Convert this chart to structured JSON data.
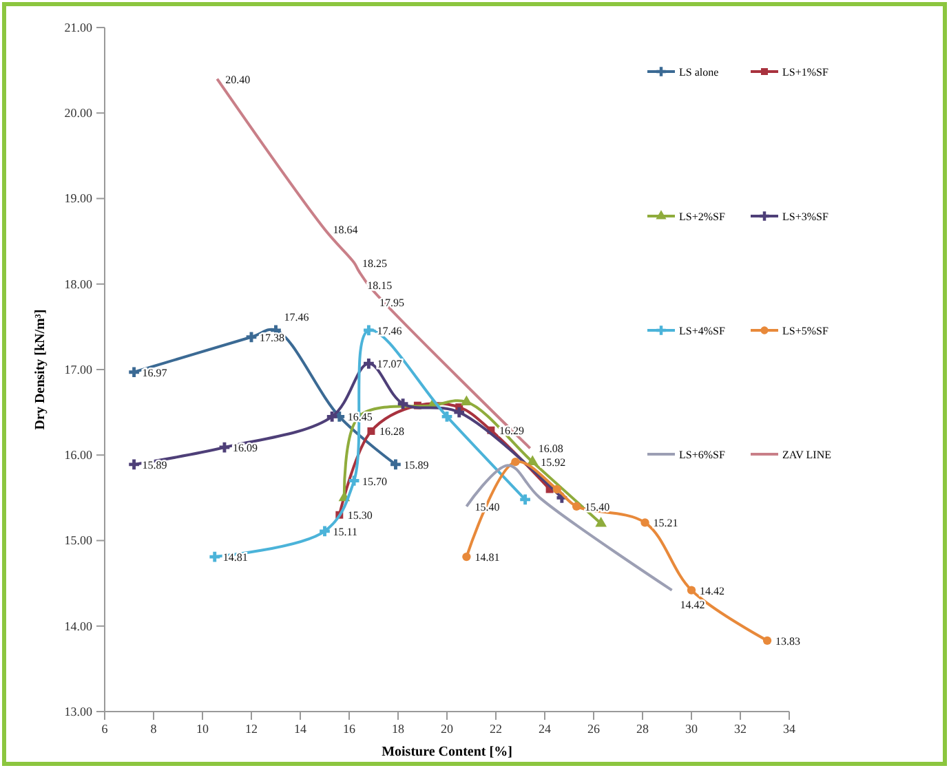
{
  "chart_data": {
    "type": "line",
    "xlabel": "Moisture Content [%]",
    "ylabel": "Dry Density [kN/m³]",
    "xlim": [
      6,
      34
    ],
    "xticks": [
      6,
      8,
      10,
      12,
      14,
      16,
      18,
      20,
      22,
      24,
      26,
      28,
      30,
      32,
      34
    ],
    "ylim": [
      13,
      21
    ],
    "yticks": [
      {
        "value": 13,
        "label": "13.00"
      },
      {
        "value": 14,
        "label": "14.00"
      },
      {
        "value": 15,
        "label": "15.00"
      },
      {
        "value": 16,
        "label": "16.00"
      },
      {
        "value": 17,
        "label": "17.00"
      },
      {
        "value": 18,
        "label": "18.00"
      },
      {
        "value": 19,
        "label": "19.00"
      },
      {
        "value": 20,
        "label": "20.00"
      },
      {
        "value": 21,
        "label": "21.00"
      }
    ],
    "grid": false,
    "legend": "top right",
    "series": [
      {
        "name": "LS alone",
        "color": "#3b6a94",
        "marker": "cross",
        "x": [
          7.2,
          12,
          13,
          15.6,
          17.9
        ],
        "values": [
          16.97,
          17.38,
          17.46,
          16.45,
          15.89
        ],
        "value_labels": [
          "16.97",
          "17.38",
          "17.46",
          "16.45",
          "15.89"
        ]
      },
      {
        "name": "LS+1%SF",
        "color": "#a8323e",
        "marker": "square",
        "x": [
          15.6,
          16.9,
          18.8,
          20.5,
          21.8,
          24.2
        ],
        "values": [
          15.3,
          16.28,
          16.58,
          16.56,
          16.29,
          15.6
        ],
        "value_labels": [
          "15.30",
          "16.28",
          null,
          null,
          "16.29",
          null
        ]
      },
      {
        "name": "LS+2%SF",
        "color": "#8fac3c",
        "marker": "triangle",
        "x": [
          15.8,
          16.4,
          19.4,
          20.8,
          23.5,
          26.3
        ],
        "values": [
          15.5,
          16.45,
          16.58,
          16.62,
          15.92,
          15.2
        ],
        "value_labels": [
          null,
          null,
          null,
          null,
          "15.92",
          null
        ]
      },
      {
        "name": "LS+3%SF",
        "color": "#4e3f78",
        "marker": "cross",
        "x": [
          7.2,
          10.9,
          15.3,
          16.8,
          18.2,
          20.5,
          24.7
        ],
        "values": [
          15.89,
          16.09,
          16.45,
          17.07,
          16.6,
          16.5,
          15.5
        ],
        "value_labels": [
          "15.89",
          "16.09",
          null,
          "17.07",
          null,
          null,
          null
        ]
      },
      {
        "name": "LS+4%SF",
        "color": "#4bb3d9",
        "marker": "cross",
        "x": [
          10.5,
          15,
          16.2,
          16.8,
          20,
          23.2
        ],
        "values": [
          14.81,
          15.11,
          15.7,
          17.46,
          16.45,
          15.48
        ],
        "value_labels": [
          "14.81",
          "15.11",
          "15.70",
          "17.46",
          null,
          null
        ]
      },
      {
        "name": "LS+5%SF",
        "color": "#e8893a",
        "marker": "circle",
        "x": [
          20.8,
          22.8,
          24.5,
          25.3,
          28.1,
          30,
          33.1
        ],
        "values": [
          14.81,
          15.92,
          15.6,
          15.4,
          15.21,
          14.42,
          13.83
        ],
        "value_labels": [
          "14.81",
          null,
          null,
          "15.40",
          "15.21",
          "14.42",
          "13.83"
        ]
      },
      {
        "name": "LS+6%SF",
        "color": "#9c9fb4",
        "marker": "none",
        "x": [
          20.8,
          22.5,
          23.8,
          29.2
        ],
        "values": [
          15.4,
          15.88,
          15.5,
          14.42
        ],
        "value_labels": [
          "15.40",
          null,
          null,
          "14.42"
        ]
      },
      {
        "name": "ZAV LINE",
        "color": "#c97f88",
        "marker": "none",
        "x": [
          10.6,
          15,
          16.2,
          16.4,
          16.9,
          23.4
        ],
        "values": [
          20.4,
          18.64,
          18.25,
          18.15,
          17.95,
          16.08
        ],
        "value_labels": [
          "20.40",
          "18.64",
          "18.25",
          "18.15",
          "17.95",
          "16.08"
        ]
      }
    ]
  }
}
